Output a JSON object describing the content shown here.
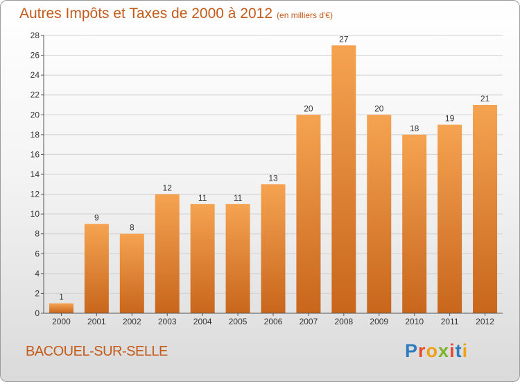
{
  "chart_data": {
    "type": "bar",
    "title": "Autres Impôts et Taxes de 2000 à 2012",
    "unit": "(en milliers d'€)",
    "categories": [
      "2000",
      "2001",
      "2002",
      "2003",
      "2004",
      "2005",
      "2006",
      "2007",
      "2008",
      "2009",
      "2010",
      "2011",
      "2012"
    ],
    "values": [
      1,
      9,
      8,
      12,
      11,
      11,
      13,
      20,
      27,
      20,
      18,
      19,
      21
    ],
    "ylim": [
      0,
      28
    ],
    "yticks": [
      0,
      2,
      4,
      6,
      8,
      10,
      12,
      14,
      16,
      18,
      20,
      22,
      24,
      26,
      28
    ],
    "grid": true,
    "bar_color_top": "#f5a351",
    "bar_color_bottom": "#c8661c"
  },
  "commune": "BACOUEL-SUR-SELLE",
  "logo": {
    "text": "Proxiti",
    "colors": [
      "#2e7dc1",
      "#e8492a",
      "#f0a019",
      "#7cb32c",
      "#e8492a",
      "#2e7dc1",
      "#f0a019"
    ]
  },
  "colors": {
    "title": "#c45a1a",
    "grid": "#d0d0d0",
    "axis": "#555555"
  }
}
